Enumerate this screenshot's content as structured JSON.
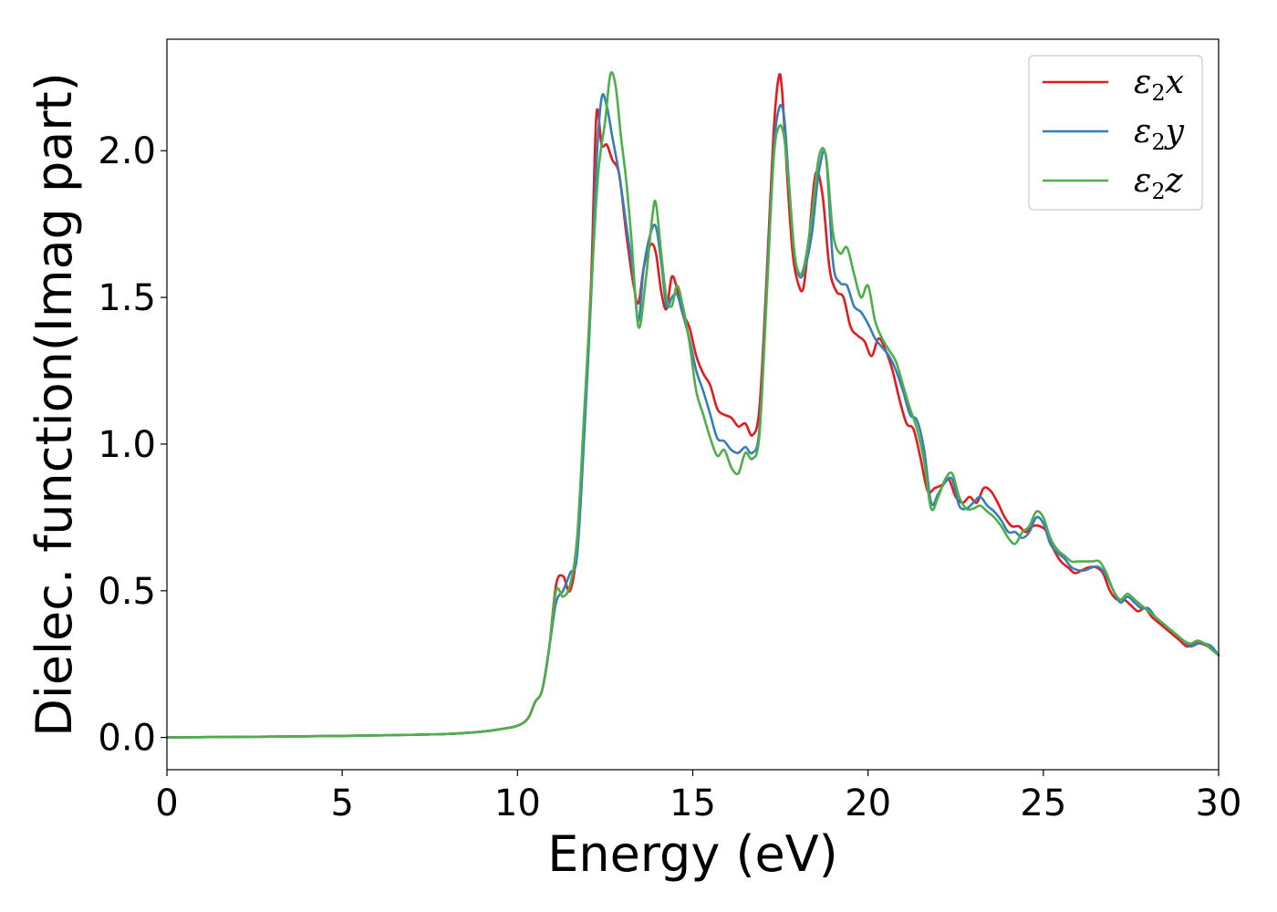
{
  "chart_data": {
    "type": "line",
    "title": "",
    "xlabel": "Energy (eV)",
    "ylabel": "Dielec. function(Imag part)",
    "xlim": [
      0,
      30
    ],
    "ylim": [
      -0.11,
      2.38
    ],
    "xticks": [
      0,
      5,
      10,
      15,
      20,
      25,
      30
    ],
    "xtick_labels": [
      "0",
      "5",
      "10",
      "15",
      "20",
      "25",
      "30"
    ],
    "yticks": [
      0.0,
      0.5,
      1.0,
      1.5,
      2.0
    ],
    "ytick_labels": [
      "0.0",
      "0.5",
      "1.0",
      "1.5",
      "2.0"
    ],
    "grid": false,
    "legend_position": "top-right",
    "series": [
      {
        "name": "ε2x",
        "legend": {
          "symbol": "ε",
          "sub": "2",
          "axis": "x"
        },
        "color": "#e41a1c",
        "x": [
          0,
          2,
          4,
          6,
          8,
          9,
          9.5,
          10,
          10.3,
          10.5,
          10.7,
          10.9,
          11.1,
          11.3,
          11.5,
          11.7,
          11.9,
          12.1,
          12.25,
          12.4,
          12.55,
          12.7,
          12.9,
          13.1,
          13.3,
          13.45,
          13.6,
          13.8,
          13.95,
          14.1,
          14.25,
          14.4,
          14.55,
          14.7,
          14.9,
          15.1,
          15.3,
          15.5,
          15.7,
          15.9,
          16.1,
          16.3,
          16.5,
          16.7,
          16.9,
          17.1,
          17.3,
          17.45,
          17.55,
          17.7,
          17.85,
          18.0,
          18.15,
          18.3,
          18.5,
          18.7,
          18.9,
          19.1,
          19.3,
          19.5,
          19.7,
          19.9,
          20.1,
          20.3,
          20.5,
          20.7,
          20.9,
          21.1,
          21.3,
          21.5,
          21.7,
          21.9,
          22.1,
          22.3,
          22.5,
          22.7,
          22.9,
          23.1,
          23.3,
          23.5,
          23.7,
          23.9,
          24.1,
          24.3,
          24.5,
          24.7,
          24.9,
          25.1,
          25.3,
          25.5,
          25.7,
          25.9,
          26.1,
          26.3,
          26.5,
          26.7,
          26.9,
          27.1,
          27.3,
          27.5,
          27.7,
          27.9,
          28.1,
          28.3,
          28.5,
          28.7,
          28.9,
          29.1,
          29.3,
          29.5,
          29.7,
          30
        ],
        "y": [
          0,
          0.002,
          0.004,
          0.007,
          0.012,
          0.02,
          0.028,
          0.04,
          0.065,
          0.12,
          0.16,
          0.3,
          0.52,
          0.55,
          0.5,
          0.65,
          1.05,
          1.55,
          2.12,
          2.02,
          2.02,
          1.97,
          1.92,
          1.72,
          1.55,
          1.48,
          1.6,
          1.68,
          1.65,
          1.52,
          1.46,
          1.57,
          1.53,
          1.45,
          1.4,
          1.3,
          1.24,
          1.2,
          1.12,
          1.1,
          1.09,
          1.06,
          1.07,
          1.03,
          1.12,
          1.55,
          2.05,
          2.25,
          2.2,
          1.9,
          1.65,
          1.55,
          1.53,
          1.68,
          1.92,
          1.85,
          1.6,
          1.52,
          1.5,
          1.4,
          1.37,
          1.35,
          1.3,
          1.36,
          1.32,
          1.25,
          1.15,
          1.07,
          1.05,
          0.95,
          0.84,
          0.85,
          0.86,
          0.88,
          0.82,
          0.8,
          0.82,
          0.8,
          0.85,
          0.84,
          0.8,
          0.75,
          0.72,
          0.72,
          0.7,
          0.72,
          0.72,
          0.7,
          0.64,
          0.6,
          0.58,
          0.56,
          0.57,
          0.58,
          0.58,
          0.56,
          0.5,
          0.47,
          0.47,
          0.45,
          0.43,
          0.44,
          0.41,
          0.39,
          0.37,
          0.35,
          0.33,
          0.31,
          0.32,
          0.32,
          0.31,
          0.28
        ]
      },
      {
        "name": "ε2y",
        "legend": {
          "symbol": "ε",
          "sub": "2",
          "axis": "y"
        },
        "color": "#377eb8",
        "x": [
          0,
          2,
          4,
          6,
          8,
          9,
          9.5,
          10,
          10.3,
          10.5,
          10.7,
          10.9,
          11.1,
          11.3,
          11.5,
          11.7,
          11.9,
          12.1,
          12.25,
          12.4,
          12.55,
          12.7,
          12.9,
          13.1,
          13.3,
          13.45,
          13.6,
          13.8,
          13.95,
          14.1,
          14.25,
          14.4,
          14.55,
          14.7,
          14.9,
          15.1,
          15.3,
          15.5,
          15.7,
          15.9,
          16.1,
          16.3,
          16.5,
          16.7,
          16.9,
          17.1,
          17.3,
          17.45,
          17.6,
          17.75,
          17.9,
          18.05,
          18.2,
          18.4,
          18.6,
          18.8,
          19.0,
          19.2,
          19.4,
          19.6,
          19.8,
          20.0,
          20.2,
          20.4,
          20.6,
          20.8,
          21.0,
          21.2,
          21.4,
          21.6,
          21.8,
          22.0,
          22.2,
          22.4,
          22.6,
          22.8,
          23.0,
          23.2,
          23.4,
          23.6,
          23.8,
          24.0,
          24.2,
          24.4,
          24.6,
          24.8,
          25.0,
          25.2,
          25.4,
          25.6,
          25.8,
          26.0,
          26.2,
          26.4,
          26.6,
          26.8,
          27.0,
          27.2,
          27.4,
          27.6,
          27.8,
          28.0,
          28.2,
          28.4,
          28.6,
          28.8,
          29.0,
          29.2,
          29.4,
          29.6,
          29.8,
          30
        ],
        "y": [
          0,
          0.002,
          0.004,
          0.007,
          0.012,
          0.02,
          0.028,
          0.04,
          0.065,
          0.12,
          0.16,
          0.3,
          0.46,
          0.5,
          0.56,
          0.62,
          1.02,
          1.5,
          1.95,
          2.18,
          2.15,
          2.05,
          1.92,
          1.75,
          1.58,
          1.42,
          1.6,
          1.72,
          1.74,
          1.62,
          1.47,
          1.5,
          1.51,
          1.45,
          1.36,
          1.25,
          1.18,
          1.1,
          1.02,
          1.01,
          0.98,
          0.97,
          0.99,
          0.97,
          1.05,
          1.5,
          1.98,
          2.14,
          2.12,
          1.88,
          1.65,
          1.57,
          1.6,
          1.72,
          1.93,
          1.98,
          1.62,
          1.55,
          1.54,
          1.47,
          1.45,
          1.41,
          1.36,
          1.33,
          1.3,
          1.25,
          1.18,
          1.1,
          1.08,
          0.98,
          0.8,
          0.83,
          0.87,
          0.88,
          0.79,
          0.78,
          0.8,
          0.82,
          0.79,
          0.77,
          0.74,
          0.7,
          0.7,
          0.68,
          0.7,
          0.75,
          0.73,
          0.66,
          0.63,
          0.61,
          0.58,
          0.57,
          0.57,
          0.58,
          0.58,
          0.55,
          0.5,
          0.46,
          0.48,
          0.46,
          0.44,
          0.44,
          0.41,
          0.39,
          0.37,
          0.35,
          0.33,
          0.31,
          0.32,
          0.32,
          0.31,
          0.28
        ]
      },
      {
        "name": "ε2z",
        "legend": {
          "symbol": "ε",
          "sub": "2",
          "axis": "z"
        },
        "color": "#4daf4a",
        "x": [
          0,
          2,
          4,
          6,
          8,
          9,
          9.5,
          10,
          10.3,
          10.5,
          10.7,
          10.9,
          11.1,
          11.3,
          11.5,
          11.7,
          11.9,
          12.1,
          12.3,
          12.5,
          12.65,
          12.8,
          12.95,
          13.1,
          13.25,
          13.45,
          13.65,
          13.85,
          13.95,
          14.1,
          14.25,
          14.4,
          14.55,
          14.7,
          14.9,
          15.1,
          15.3,
          15.5,
          15.7,
          15.9,
          16.1,
          16.3,
          16.5,
          16.7,
          16.9,
          17.1,
          17.3,
          17.45,
          17.6,
          17.75,
          17.9,
          18.05,
          18.2,
          18.4,
          18.6,
          18.8,
          19.0,
          19.2,
          19.4,
          19.6,
          19.8,
          20.0,
          20.2,
          20.4,
          20.6,
          20.8,
          21.0,
          21.2,
          21.4,
          21.6,
          21.8,
          22.0,
          22.2,
          22.4,
          22.6,
          22.8,
          23.0,
          23.2,
          23.4,
          23.6,
          23.8,
          24.0,
          24.2,
          24.4,
          24.6,
          24.8,
          25.0,
          25.2,
          25.4,
          25.6,
          25.8,
          26.0,
          26.2,
          26.4,
          26.6,
          26.8,
          27.0,
          27.2,
          27.4,
          27.6,
          27.8,
          28.0,
          28.2,
          28.4,
          28.6,
          28.8,
          29.0,
          29.2,
          29.4,
          29.6,
          29.8,
          30
        ],
        "y": [
          0,
          0.002,
          0.004,
          0.007,
          0.012,
          0.02,
          0.028,
          0.04,
          0.065,
          0.12,
          0.16,
          0.3,
          0.5,
          0.48,
          0.52,
          0.68,
          1.1,
          1.52,
          1.92,
          2.1,
          2.26,
          2.22,
          2.05,
          1.9,
          1.7,
          1.4,
          1.55,
          1.78,
          1.82,
          1.65,
          1.5,
          1.47,
          1.54,
          1.48,
          1.35,
          1.18,
          1.1,
          1.02,
          0.96,
          0.98,
          0.92,
          0.9,
          0.97,
          0.95,
          1.03,
          1.48,
          1.96,
          2.08,
          2.05,
          1.87,
          1.65,
          1.58,
          1.62,
          1.78,
          1.98,
          1.98,
          1.72,
          1.65,
          1.67,
          1.58,
          1.5,
          1.54,
          1.42,
          1.36,
          1.32,
          1.28,
          1.2,
          1.12,
          1.05,
          0.94,
          0.78,
          0.82,
          0.88,
          0.9,
          0.82,
          0.78,
          0.78,
          0.79,
          0.77,
          0.75,
          0.72,
          0.68,
          0.66,
          0.7,
          0.72,
          0.77,
          0.75,
          0.68,
          0.64,
          0.62,
          0.6,
          0.6,
          0.6,
          0.6,
          0.6,
          0.56,
          0.5,
          0.47,
          0.49,
          0.47,
          0.45,
          0.43,
          0.41,
          0.39,
          0.37,
          0.35,
          0.33,
          0.32,
          0.33,
          0.32,
          0.3,
          0.28
        ]
      }
    ]
  }
}
